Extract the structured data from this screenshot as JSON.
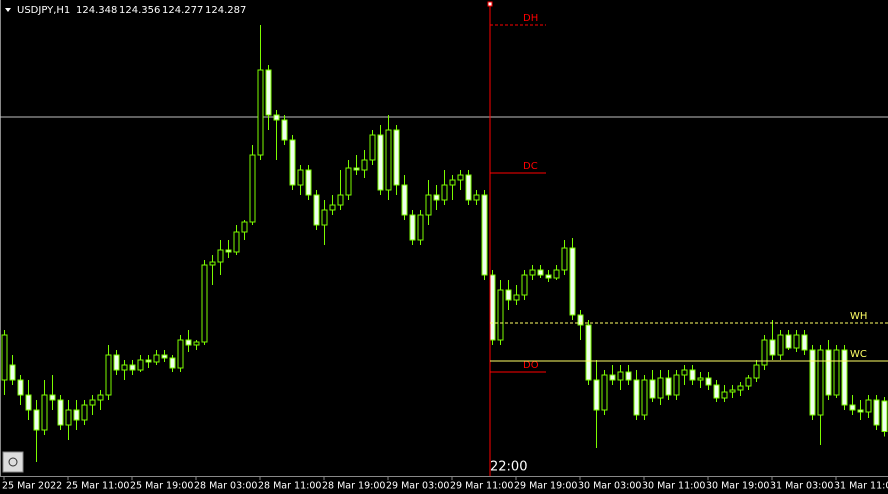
{
  "chart_data": {
    "type": "candlestick",
    "symbol": "USDJPY,H1",
    "quote": [
      124.348,
      124.356,
      124.277,
      124.287
    ],
    "ylim": [
      124.202,
      125.15
    ],
    "candle_color": "#7cfc00",
    "candles": [
      [
        124.39,
        124.49,
        124.36,
        124.48
      ],
      [
        124.42,
        124.44,
        124.38,
        124.39
      ],
      [
        124.39,
        124.4,
        124.34,
        124.36
      ],
      [
        124.36,
        124.39,
        124.31,
        124.33
      ],
      [
        124.33,
        124.35,
        124.226,
        124.29
      ],
      [
        124.29,
        124.39,
        124.28,
        124.36
      ],
      [
        124.36,
        124.4,
        124.33,
        124.35
      ],
      [
        124.35,
        124.36,
        124.29,
        124.3
      ],
      [
        124.3,
        124.35,
        124.27,
        124.33
      ],
      [
        124.33,
        124.35,
        124.29,
        124.31
      ],
      [
        124.31,
        124.35,
        124.3,
        124.34
      ],
      [
        124.34,
        124.36,
        124.32,
        124.35
      ],
      [
        124.35,
        124.37,
        124.33,
        124.36
      ],
      [
        124.36,
        124.46,
        124.35,
        124.44
      ],
      [
        124.44,
        124.45,
        124.4,
        124.41
      ],
      [
        124.41,
        124.43,
        124.39,
        124.42
      ],
      [
        124.42,
        124.43,
        124.4,
        124.41
      ],
      [
        124.41,
        124.44,
        124.406,
        124.43
      ],
      [
        124.43,
        124.44,
        124.414,
        124.426
      ],
      [
        124.426,
        124.45,
        124.42,
        124.44
      ],
      [
        124.44,
        124.45,
        124.426,
        124.434
      ],
      [
        124.434,
        124.44,
        124.406,
        124.414
      ],
      [
        124.414,
        124.48,
        124.406,
        124.47
      ],
      [
        124.47,
        124.49,
        124.446,
        124.46
      ],
      [
        124.46,
        124.47,
        124.45,
        124.466
      ],
      [
        124.466,
        124.63,
        124.46,
        124.62
      ],
      [
        124.62,
        124.64,
        124.58,
        124.626
      ],
      [
        124.626,
        124.67,
        124.6,
        124.65
      ],
      [
        124.65,
        124.67,
        124.634,
        124.646
      ],
      [
        124.646,
        124.7,
        124.64,
        124.686
      ],
      [
        124.686,
        124.71,
        124.67,
        124.706
      ],
      [
        124.706,
        124.86,
        124.7,
        124.84
      ],
      [
        124.84,
        125.1,
        124.83,
        125.01
      ],
      [
        125.01,
        125.02,
        124.89,
        124.92
      ],
      [
        124.92,
        124.93,
        124.83,
        124.91
      ],
      [
        124.91,
        124.92,
        124.86,
        124.87
      ],
      [
        124.87,
        124.88,
        124.77,
        124.78
      ],
      [
        124.78,
        124.82,
        124.76,
        124.81
      ],
      [
        124.81,
        124.82,
        124.75,
        124.76
      ],
      [
        124.76,
        124.77,
        124.69,
        124.7
      ],
      [
        124.7,
        124.75,
        124.66,
        124.73
      ],
      [
        124.73,
        124.76,
        124.72,
        124.74
      ],
      [
        124.74,
        124.81,
        124.73,
        124.76
      ],
      [
        124.76,
        124.83,
        124.75,
        124.814
      ],
      [
        124.814,
        124.84,
        124.8,
        124.81
      ],
      [
        124.81,
        124.85,
        124.794,
        124.83
      ],
      [
        124.83,
        124.89,
        124.82,
        124.88
      ],
      [
        124.88,
        124.9,
        124.76,
        124.77
      ],
      [
        124.77,
        124.92,
        124.75,
        124.89
      ],
      [
        124.89,
        124.9,
        124.76,
        124.78
      ],
      [
        124.78,
        124.8,
        124.71,
        124.72
      ],
      [
        124.72,
        124.73,
        124.66,
        124.67
      ],
      [
        124.67,
        124.73,
        124.66,
        124.72
      ],
      [
        124.72,
        124.79,
        124.7,
        124.76
      ],
      [
        124.76,
        124.78,
        124.73,
        124.75
      ],
      [
        124.75,
        124.81,
        124.74,
        124.78
      ],
      [
        124.78,
        124.8,
        124.75,
        124.79
      ],
      [
        124.79,
        124.81,
        124.77,
        124.8
      ],
      [
        124.8,
        124.81,
        124.74,
        124.75
      ],
      [
        124.75,
        124.77,
        124.74,
        124.76
      ],
      [
        124.76,
        124.77,
        124.59,
        124.6
      ],
      [
        124.6,
        124.61,
        124.46,
        124.47
      ],
      [
        124.47,
        124.59,
        124.46,
        124.57
      ],
      [
        124.57,
        124.59,
        124.53,
        124.55
      ],
      [
        124.55,
        124.58,
        124.54,
        124.56
      ],
      [
        124.56,
        124.61,
        124.55,
        124.6
      ],
      [
        124.6,
        124.62,
        124.59,
        124.61
      ],
      [
        124.61,
        124.62,
        124.594,
        124.6
      ],
      [
        124.6,
        124.61,
        124.586,
        124.594
      ],
      [
        124.594,
        124.62,
        124.59,
        124.61
      ],
      [
        124.61,
        124.67,
        124.6,
        124.654
      ],
      [
        124.654,
        124.674,
        124.51,
        124.52
      ],
      [
        124.52,
        124.53,
        124.47,
        124.5
      ],
      [
        124.5,
        124.51,
        124.38,
        124.39
      ],
      [
        124.39,
        124.43,
        124.254,
        124.33
      ],
      [
        124.33,
        124.41,
        124.32,
        124.4
      ],
      [
        124.4,
        124.42,
        124.38,
        124.39
      ],
      [
        124.39,
        124.42,
        124.37,
        124.406
      ],
      [
        124.406,
        124.42,
        124.38,
        124.39
      ],
      [
        124.39,
        124.41,
        124.31,
        124.32
      ],
      [
        124.32,
        124.4,
        124.31,
        124.39
      ],
      [
        124.39,
        124.41,
        124.346,
        124.354
      ],
      [
        124.354,
        124.41,
        124.34,
        124.394
      ],
      [
        124.394,
        124.41,
        124.35,
        124.36
      ],
      [
        124.36,
        124.41,
        124.35,
        124.4
      ],
      [
        124.4,
        124.42,
        124.38,
        124.41
      ],
      [
        124.41,
        124.42,
        124.38,
        124.39
      ],
      [
        124.39,
        124.406,
        124.374,
        124.394
      ],
      [
        124.394,
        124.406,
        124.37,
        124.38
      ],
      [
        124.38,
        124.39,
        124.346,
        124.354
      ],
      [
        124.354,
        124.38,
        124.346,
        124.366
      ],
      [
        124.366,
        124.38,
        124.354,
        124.37
      ],
      [
        124.37,
        124.386,
        124.358,
        124.378
      ],
      [
        124.378,
        124.4,
        124.37,
        124.394
      ],
      [
        124.394,
        124.43,
        124.386,
        124.42
      ],
      [
        124.42,
        124.48,
        124.41,
        124.47
      ],
      [
        124.47,
        124.51,
        124.43,
        124.44
      ],
      [
        124.44,
        124.49,
        124.43,
        124.48
      ],
      [
        124.48,
        124.49,
        124.45,
        124.454
      ],
      [
        124.454,
        124.49,
        124.446,
        124.48
      ],
      [
        124.48,
        124.49,
        124.44,
        124.45
      ],
      [
        124.45,
        124.46,
        124.31,
        124.32
      ],
      [
        124.32,
        124.46,
        124.26,
        124.45
      ],
      [
        124.45,
        124.47,
        124.35,
        124.36
      ],
      [
        124.36,
        124.46,
        124.354,
        124.45
      ],
      [
        124.45,
        124.46,
        124.33,
        124.34
      ],
      [
        124.34,
        124.36,
        124.32,
        124.33
      ],
      [
        124.33,
        124.35,
        124.31,
        124.326
      ],
      [
        124.326,
        124.36,
        124.314,
        124.35
      ],
      [
        124.35,
        124.36,
        124.29,
        124.3
      ],
      [
        124.348,
        124.356,
        124.277,
        124.287
      ]
    ],
    "xticks": [
      {
        "value": 0,
        "label": "25 Mar 2022"
      },
      {
        "value": 8,
        "label": "25 Mar 11:00"
      },
      {
        "value": 16,
        "label": "25 Mar 19:00"
      },
      {
        "value": 24,
        "label": "28 Mar 03:00"
      },
      {
        "value": 32,
        "label": "28 Mar 11:00"
      },
      {
        "value": 40,
        "label": "28 Mar 19:00"
      },
      {
        "value": 48,
        "label": "29 Mar 03:00"
      },
      {
        "value": 56,
        "label": "29 Mar 11:00"
      },
      {
        "value": 64,
        "label": "29 Mar 19:00"
      },
      {
        "value": 72,
        "label": "30 Mar 03:00"
      },
      {
        "value": 80,
        "label": "30 Mar 11:00"
      },
      {
        "value": 88,
        "label": "30 Mar 19:00"
      },
      {
        "value": 96,
        "label": "31 Mar 03:00"
      },
      {
        "value": 104,
        "label": "31 Mar 11:00"
      }
    ],
    "cursor": {
      "value": 61,
      "label": "22:00",
      "color": "#ff0000"
    },
    "hline": {
      "value": 124.916,
      "color": "#c0c0c0"
    },
    "levels": [
      {
        "label": "DH",
        "value": 125.1,
        "color": "#ff0000",
        "dashed": true,
        "short": true
      },
      {
        "label": "DC",
        "value": 124.804,
        "color": "#ff0000",
        "dashed": false,
        "short": true
      },
      {
        "label": "DO",
        "value": 124.406,
        "color": "#ff0000",
        "dashed": false,
        "short": true
      },
      {
        "label": "WH",
        "value": 124.504,
        "color": "#ffff66",
        "dashed": true,
        "short": false
      },
      {
        "label": "WC",
        "value": 124.428,
        "color": "#ffff66",
        "dashed": false,
        "short": false
      }
    ]
  }
}
